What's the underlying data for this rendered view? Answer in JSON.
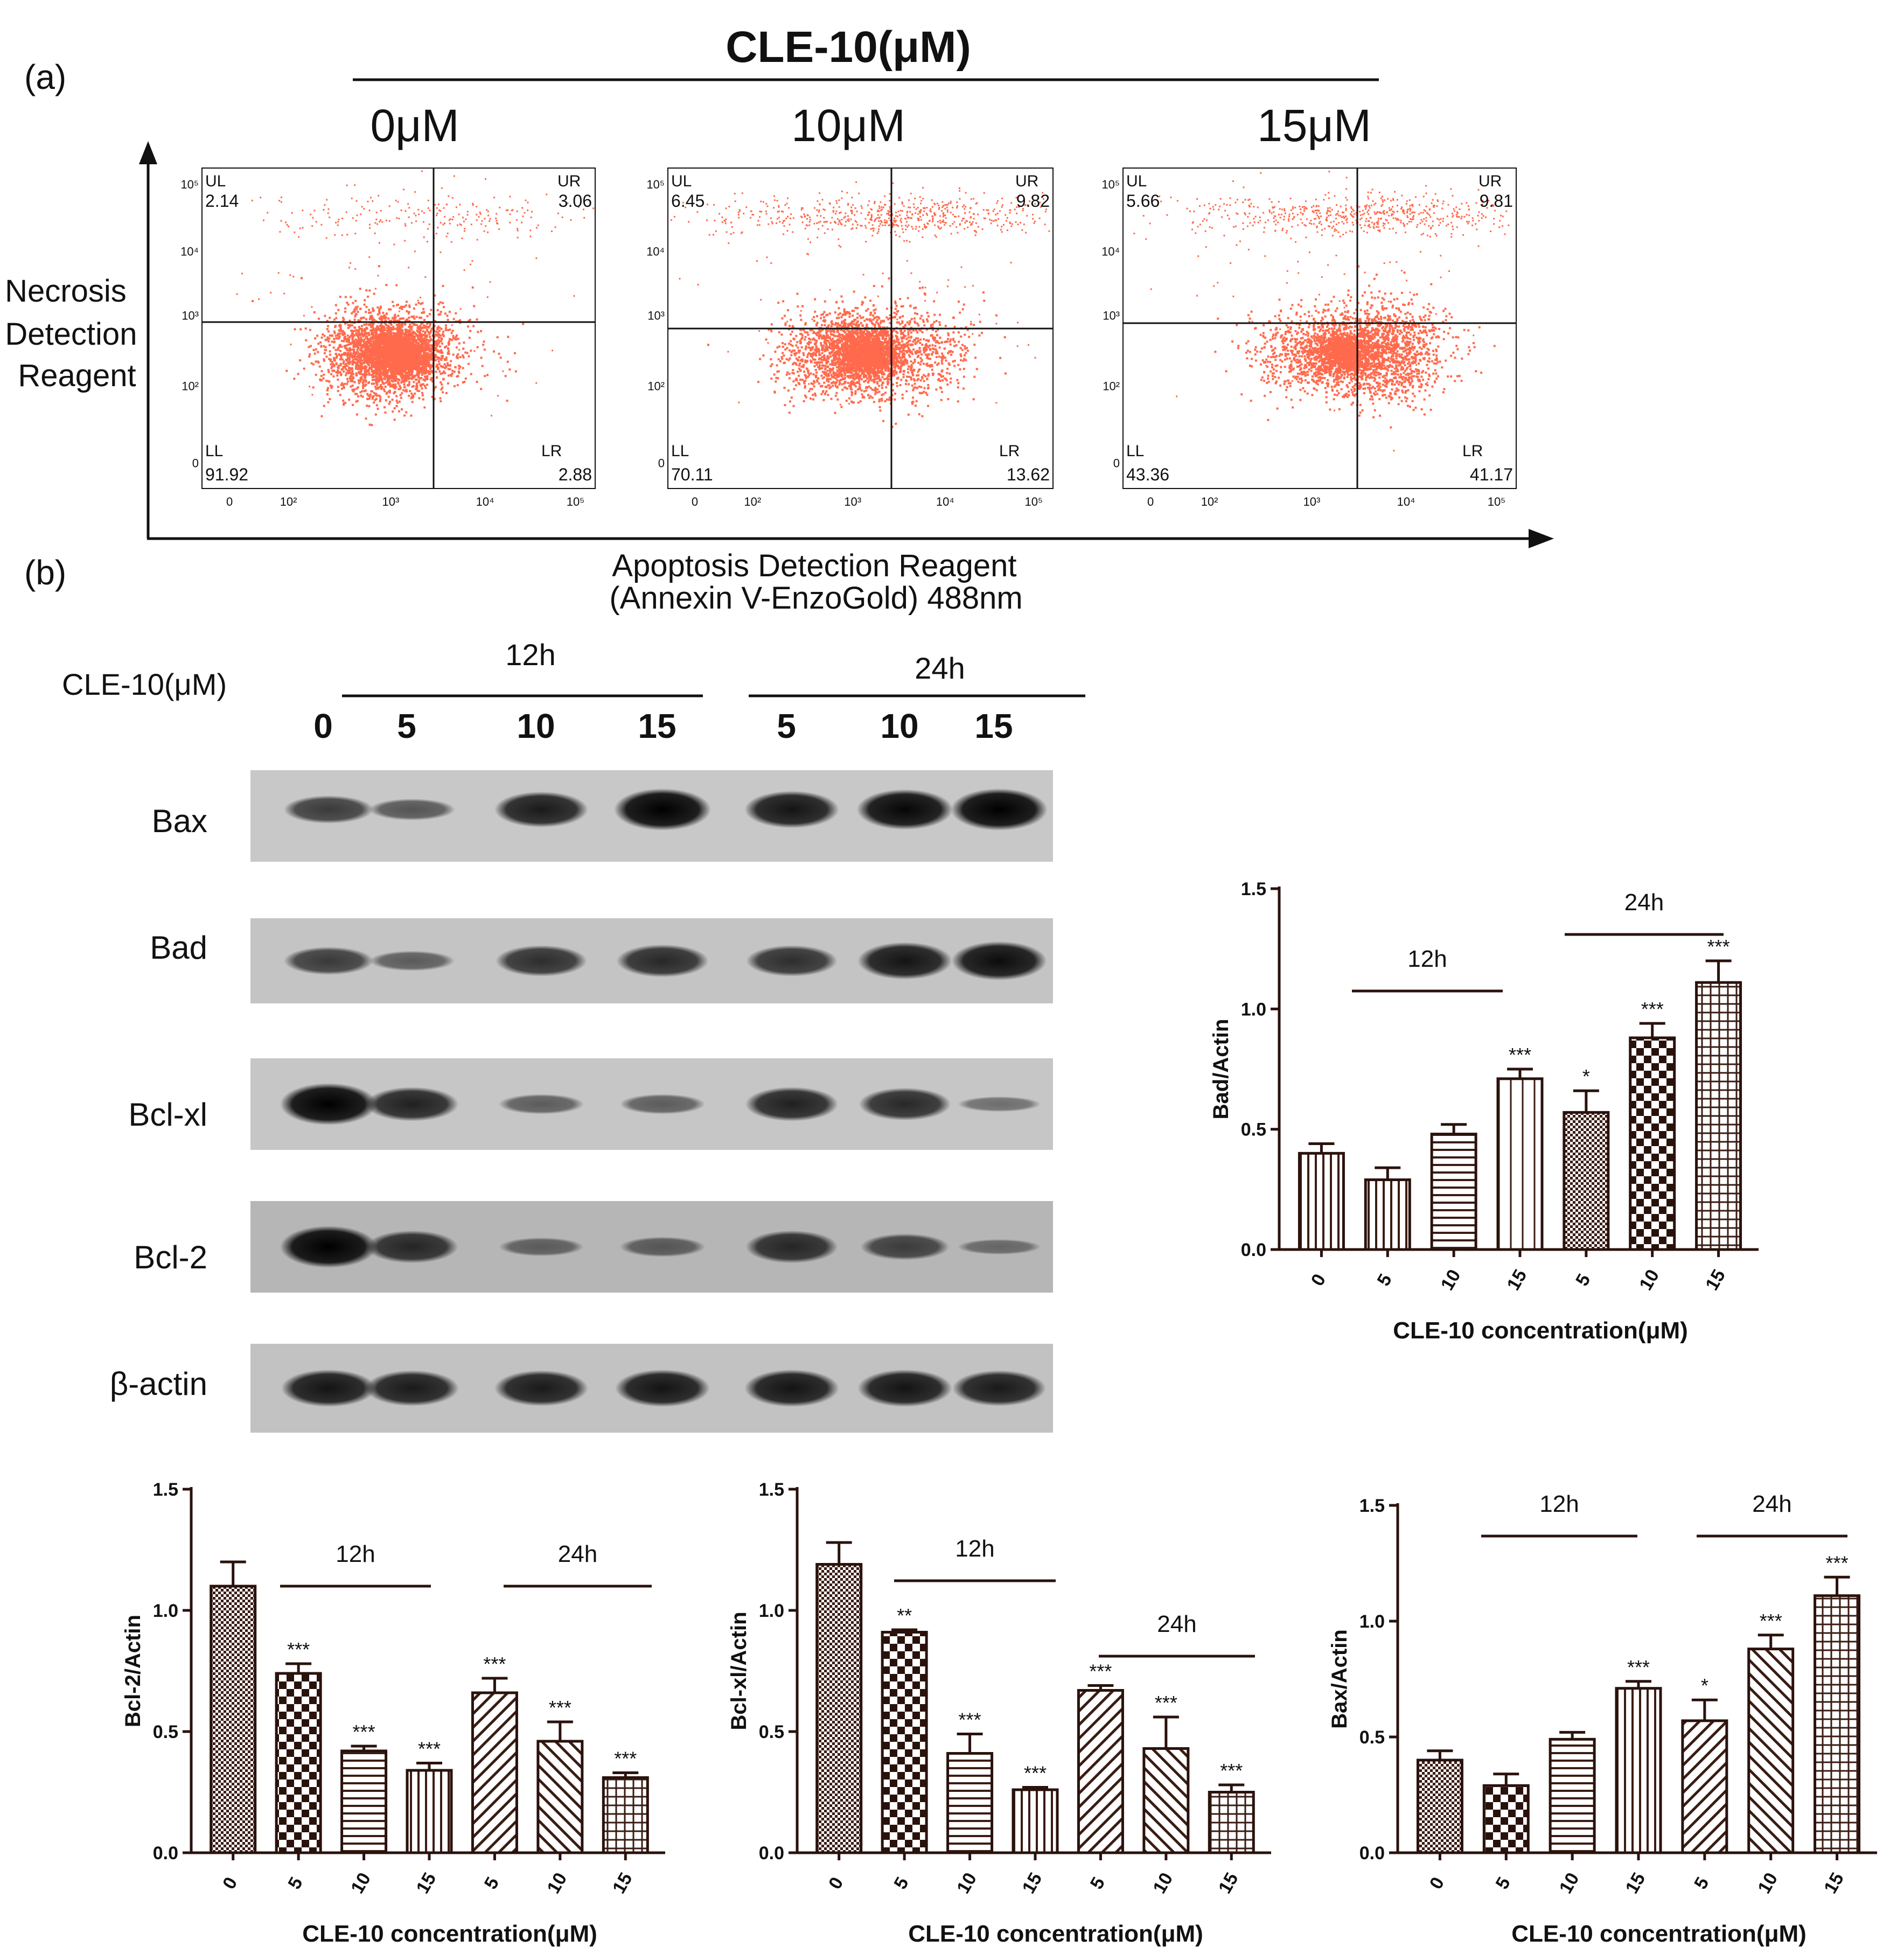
{
  "figure": {
    "panel_a_label": "(a)",
    "panel_b_label": "(b)"
  },
  "flow": {
    "title": "CLE-10(μM)",
    "y_axis_label_lines": [
      "Necrosis",
      "Detection",
      "Reagent"
    ],
    "x_axis_label_lines": [
      "Apoptosis Detection Reagent",
      "(Annexin V-EnzoGold) 488nm"
    ],
    "dot_color": "#ff6a4d",
    "ticks": {
      "x": [
        "0",
        "10²",
        "10³",
        "10⁴",
        "10⁵"
      ],
      "y": [
        "0",
        "10²",
        "10³",
        "10⁴",
        "10⁵"
      ]
    },
    "plots": [
      {
        "concentration": "0μM",
        "UL": "2.14",
        "UR": "3.06",
        "LL": "91.92",
        "LR": "2.88"
      },
      {
        "concentration": "10μM",
        "UL": "6.45",
        "UR": "9.82",
        "LL": "70.11",
        "LR": "13.62"
      },
      {
        "concentration": "15μM",
        "UL": "5.66",
        "UR": "9.81",
        "LL": "43.36",
        "LR": "41.17"
      }
    ],
    "quadrant_names": {
      "UL": "UL",
      "UR": "UR",
      "LL": "LL",
      "LR": "LR"
    }
  },
  "western": {
    "treatment_label": "CLE-10(μM)",
    "group_12h": "12h",
    "group_24h": "24h",
    "lanes": [
      "0",
      "5",
      "10",
      "15",
      "5",
      "10",
      "15"
    ],
    "rows": [
      {
        "name": "Bax",
        "intensity": [
          0.55,
          0.35,
          0.8,
          1.0,
          0.85,
          0.95,
          1.0
        ]
      },
      {
        "name": "Bad",
        "intensity": [
          0.55,
          0.3,
          0.65,
          0.7,
          0.65,
          0.85,
          0.9
        ]
      },
      {
        "name": "Bcl-xl",
        "intensity": [
          1.0,
          0.75,
          0.3,
          0.3,
          0.75,
          0.7,
          0.15
        ]
      },
      {
        "name": "Bcl-2",
        "intensity": [
          1.0,
          0.7,
          0.25,
          0.3,
          0.7,
          0.5,
          0.15
        ]
      },
      {
        "name": "β-actin",
        "intensity": [
          0.85,
          0.8,
          0.8,
          0.85,
          0.85,
          0.85,
          0.8
        ]
      }
    ]
  },
  "chart_data": [
    {
      "type": "bar",
      "categories": [
        "0",
        "5",
        "10",
        "15",
        "5",
        "10",
        "15"
      ],
      "values": [
        0.4,
        0.29,
        0.48,
        0.71,
        0.57,
        0.88,
        1.11
      ],
      "errors": [
        0.04,
        0.05,
        0.04,
        0.04,
        0.09,
        0.06,
        0.09
      ],
      "significance": [
        "",
        "",
        "",
        "***",
        "*",
        "***",
        "***"
      ],
      "patterns": [
        "vlines",
        "vlines",
        "hlines",
        "vlines-sparse",
        "dots",
        "checker",
        "grid"
      ],
      "group_labels": [
        "12h",
        "24h"
      ],
      "ylabel": "Bad/Actin",
      "xlabel": "CLE-10 concentration(μM)",
      "yticks": [
        "0.0",
        "0.5",
        "1.0",
        "1.5"
      ],
      "ylim": [
        0,
        1.5
      ]
    },
    {
      "type": "bar",
      "categories": [
        "0",
        "5",
        "10",
        "15",
        "5",
        "10",
        "15"
      ],
      "values": [
        1.1,
        0.74,
        0.42,
        0.34,
        0.66,
        0.46,
        0.31
      ],
      "errors": [
        0.1,
        0.04,
        0.02,
        0.03,
        0.06,
        0.08,
        0.02
      ],
      "significance": [
        "",
        "***",
        "***",
        "***",
        "***",
        "***",
        "***"
      ],
      "patterns": [
        "dots",
        "checker",
        "hlines",
        "vlines",
        "diag",
        "diag-rev",
        "grid"
      ],
      "group_labels": [
        "12h",
        "24h"
      ],
      "ylabel": "Bcl-2/Actin",
      "xlabel": "CLE-10 concentration(μM)",
      "yticks": [
        "0.0",
        "0.5",
        "1.0",
        "1.5"
      ],
      "ylim": [
        0,
        1.5
      ]
    },
    {
      "type": "bar",
      "categories": [
        "0",
        "5",
        "10",
        "15",
        "5",
        "10",
        "15"
      ],
      "values": [
        1.19,
        0.91,
        0.41,
        0.26,
        0.67,
        0.43,
        0.25
      ],
      "errors": [
        0.09,
        0.01,
        0.08,
        0.01,
        0.02,
        0.13,
        0.03
      ],
      "significance": [
        "",
        "**",
        "***",
        "***",
        "***",
        "***",
        "***"
      ],
      "patterns": [
        "dots",
        "checker",
        "hlines",
        "vlines",
        "diag",
        "diag-rev",
        "grid"
      ],
      "group_labels": [
        "12h",
        "24h"
      ],
      "ylabel": "Bcl-xl/Actin",
      "xlabel": "CLE-10 concentration(μM)",
      "yticks": [
        "0.0",
        "0.5",
        "1.0",
        "1.5"
      ],
      "ylim": [
        0,
        1.5
      ]
    },
    {
      "type": "bar",
      "categories": [
        "0",
        "5",
        "10",
        "15",
        "5",
        "10",
        "15"
      ],
      "values": [
        0.4,
        0.29,
        0.49,
        0.71,
        0.57,
        0.88,
        1.11
      ],
      "errors": [
        0.04,
        0.05,
        0.03,
        0.03,
        0.09,
        0.06,
        0.08
      ],
      "significance": [
        "",
        "",
        "",
        "***",
        "*",
        "***",
        "***"
      ],
      "patterns": [
        "dots",
        "checker",
        "hlines",
        "vlines",
        "diag",
        "diag-rev",
        "grid"
      ],
      "group_labels": [
        "12h",
        "24h"
      ],
      "ylabel": "Bax/Actin",
      "xlabel": "CLE-10 concentration(μM)",
      "yticks": [
        "0.0",
        "0.5",
        "1.0",
        "1.5"
      ],
      "ylim": [
        0,
        1.5
      ]
    }
  ]
}
